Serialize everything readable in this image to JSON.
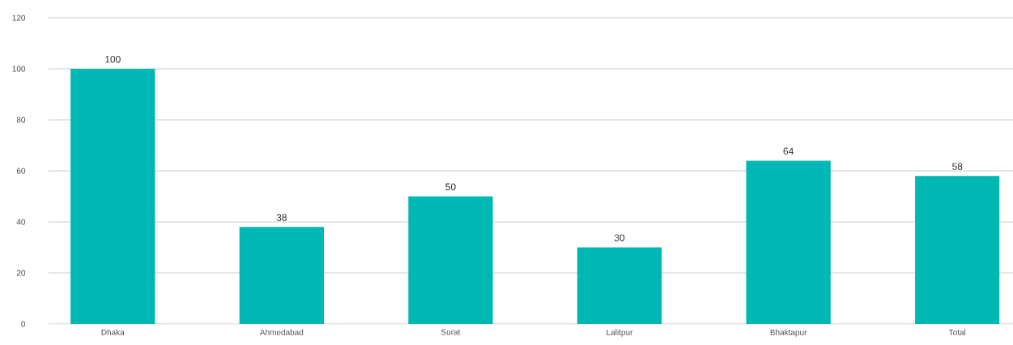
{
  "chart_data": {
    "type": "bar",
    "categories": [
      "Dhaka",
      "Ahmedabad",
      "Surat",
      "Lalitpur",
      "Bhaktapur",
      "Total"
    ],
    "values": [
      100,
      38,
      50,
      30,
      64,
      58
    ],
    "color": "#00b8b3",
    "ylim": [
      0,
      120
    ],
    "yticks": [
      0,
      20,
      40,
      60,
      80,
      100,
      120
    ],
    "grid": "y",
    "data_labels": true
  }
}
